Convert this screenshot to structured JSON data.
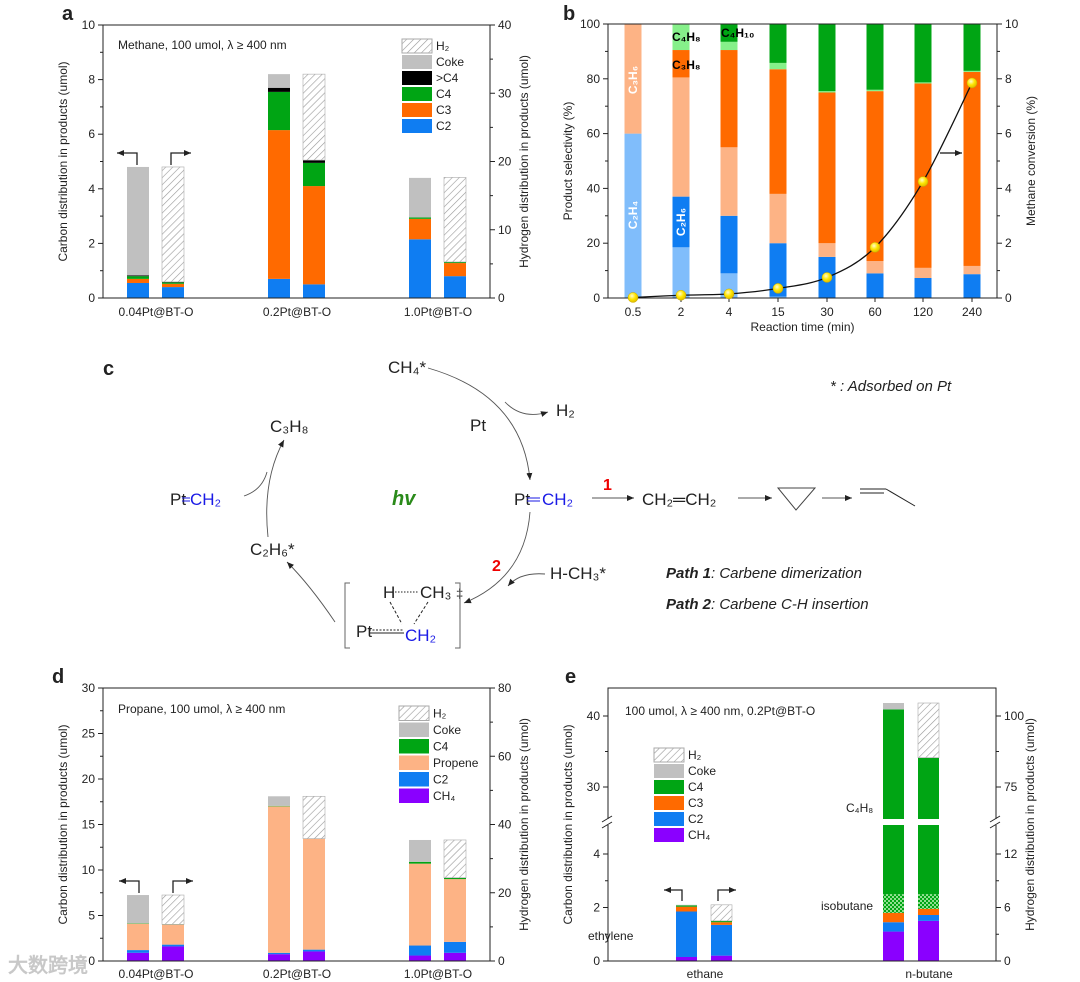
{
  "panel_labels": {
    "a": "a",
    "b": "b",
    "c": "c",
    "d": "d",
    "e": "e"
  },
  "watermark": "大数跨境",
  "colors": {
    "C2": "#0f7df2",
    "C3": "#ff6a00",
    "C4": "#00a514",
    ">C4": "#000000",
    "Coke": "#c0c0c0",
    "Propene": "#fdb385",
    "CH4": "#8a00ff",
    "C2H4": "#80bdfb",
    "C2H6": "#0f7df2",
    "C3H6": "#fdb385",
    "C3H8": "#ff6a00",
    "C4H8": "#86f08a",
    "C4H10": "#00a514",
    "isobutane": "#00a514",
    "H2": "hatch",
    "conversion": "#ffe600"
  },
  "chart_data": [
    {
      "id": "a",
      "type": "bar",
      "stacked": true,
      "title": "Methane, 100 umol, λ ≥ 400 nm",
      "ylabel": "Carbon distribution in products (umol)",
      "y2label": "Hydrogen distribution  in products (umol)",
      "ylim": [
        0,
        10
      ],
      "y2lim": [
        0,
        40
      ],
      "yticks": [
        "0",
        "2",
        "4",
        "6",
        "8",
        "10"
      ],
      "y2ticks": [
        "0",
        "10",
        "20",
        "30",
        "40"
      ],
      "categories": [
        "0.04Pt@BT-O",
        "0.2Pt@BT-O",
        "1.0Pt@BT-O"
      ],
      "legend": [
        "H₂",
        "Coke",
        ">C4",
        "C4",
        "C3",
        "C2"
      ],
      "legend_keys": [
        "H2",
        "Coke",
        ">C4",
        "C4",
        "C3",
        "C2"
      ],
      "value_units": "left-axis (carbon) units; hydrogen bars read against left scale (right axis = 4×)",
      "bars": [
        {
          "category": "0.04Pt@BT-O",
          "kind": "carbon",
          "segments": [
            {
              "name": "C2",
              "value": 0.55
            },
            {
              "name": "C3",
              "value": 0.15
            },
            {
              "name": "C4",
              "value": 0.1
            },
            {
              "name": ">C4",
              "value": 0.03
            },
            {
              "name": "Coke",
              "value": 3.97
            }
          ]
        },
        {
          "category": "0.04Pt@BT-O",
          "kind": "hydrogen",
          "segments": [
            {
              "name": "C2",
              "value": 0.4
            },
            {
              "name": "C3",
              "value": 0.12
            },
            {
              "name": "C4",
              "value": 0.05
            },
            {
              "name": ">C4",
              "value": 0.02
            },
            {
              "name": "H2",
              "value": 4.21
            }
          ]
        },
        {
          "category": "0.2Pt@BT-O",
          "kind": "carbon",
          "segments": [
            {
              "name": "C2",
              "value": 0.7
            },
            {
              "name": "C3",
              "value": 5.45
            },
            {
              "name": "C4",
              "value": 1.4
            },
            {
              "name": ">C4",
              "value": 0.15
            },
            {
              "name": "Coke",
              "value": 0.5
            }
          ]
        },
        {
          "category": "0.2Pt@BT-O",
          "kind": "hydrogen",
          "segments": [
            {
              "name": "C2",
              "value": 0.5
            },
            {
              "name": "C3",
              "value": 3.6
            },
            {
              "name": "C4",
              "value": 0.85
            },
            {
              "name": ">C4",
              "value": 0.1
            },
            {
              "name": "H2",
              "value": 3.15
            }
          ]
        },
        {
          "category": "1.0Pt@BT-O",
          "kind": "carbon",
          "segments": [
            {
              "name": "C2",
              "value": 2.15
            },
            {
              "name": "C3",
              "value": 0.75
            },
            {
              "name": "C4",
              "value": 0.05
            },
            {
              "name": "Coke",
              "value": 1.45
            }
          ]
        },
        {
          "category": "1.0Pt@BT-O",
          "kind": "hydrogen",
          "segments": [
            {
              "name": "C2",
              "value": 0.8
            },
            {
              "name": "C3",
              "value": 0.48
            },
            {
              "name": "C4",
              "value": 0.04
            },
            {
              "name": "H2",
              "value": 3.1
            }
          ]
        }
      ]
    },
    {
      "id": "b",
      "type": "bar",
      "stacked": true,
      "xlabel": "Reaction time (min)",
      "ylabel": "Product selectivity (%)",
      "y2label": "Methane conversion (%)",
      "ylim": [
        0,
        100
      ],
      "y2lim": [
        0,
        10
      ],
      "yticks": [
        "0",
        "20",
        "40",
        "60",
        "80",
        "100"
      ],
      "y2ticks": [
        "0",
        "2",
        "4",
        "6",
        "8",
        "10"
      ],
      "categories": [
        "0.5",
        "2",
        "4",
        "15",
        "30",
        "60",
        "120",
        "240"
      ],
      "series": [
        {
          "name": "C2H4",
          "label": "C₂H₄",
          "values": [
            60,
            18.5,
            9,
            0.5,
            0,
            0,
            0,
            0
          ]
        },
        {
          "name": "C2H6",
          "label": "C₂H₆",
          "values": [
            0,
            18.5,
            21,
            19.5,
            15,
            9,
            7.3,
            8.7
          ]
        },
        {
          "name": "C3H6",
          "label": "C₃H₆",
          "values": [
            40,
            43.5,
            25,
            18,
            5,
            4.5,
            3.7,
            3
          ]
        },
        {
          "name": "C3H8",
          "label": "C₃H₈",
          "values": [
            0,
            10,
            35.5,
            45.5,
            55,
            62,
            67.3,
            70.8
          ]
        },
        {
          "name": "C4H8",
          "label": "C₄H₈",
          "values": [
            0,
            9.5,
            3,
            2.3,
            0.5,
            0.5,
            0.4,
            0.4
          ]
        },
        {
          "name": "C4H10",
          "label": "C₄H₁₀",
          "values": [
            0,
            0,
            6.5,
            14.2,
            24.5,
            24,
            21.3,
            17.1
          ]
        }
      ],
      "line_series": {
        "name": "Methane conversion",
        "axis": "right",
        "values": [
          0.02,
          0.1,
          0.15,
          0.35,
          0.75,
          1.85,
          4.25,
          7.85
        ]
      }
    },
    {
      "id": "d",
      "type": "bar",
      "stacked": true,
      "title": "Propane, 100 umol,  λ ≥ 400 nm",
      "ylabel": "Carbon distribution in products (umol)",
      "y2label": "Hydrogen distribution in products (umol)",
      "ylim": [
        0,
        30
      ],
      "y2lim": [
        0,
        80
      ],
      "yticks": [
        "0",
        "5",
        "10",
        "15",
        "20",
        "25",
        "30"
      ],
      "y2ticks": [
        "0",
        "20",
        "40",
        "60",
        "80"
      ],
      "categories": [
        "0.04Pt@BT-O",
        "0.2Pt@BT-O",
        "1.0Pt@BT-O"
      ],
      "legend": [
        "H₂",
        "Coke",
        "C4",
        "Propene",
        "C2",
        "CH₄"
      ],
      "legend_keys": [
        "H2",
        "Coke",
        "C4",
        "Propene",
        "C2",
        "CH4"
      ],
      "value_units": "left-axis (carbon) units; right axis = 8/3×",
      "bars": [
        {
          "category": "0.04Pt@BT-O",
          "kind": "carbon",
          "segments": [
            {
              "name": "CH4",
              "value": 0.9
            },
            {
              "name": "C2",
              "value": 0.3
            },
            {
              "name": "Propene",
              "value": 2.9
            },
            {
              "name": "C4",
              "value": 0.05
            },
            {
              "name": "Coke",
              "value": 3.1
            }
          ]
        },
        {
          "category": "0.04Pt@BT-O",
          "kind": "hydrogen",
          "segments": [
            {
              "name": "CH4",
              "value": 1.6
            },
            {
              "name": "C2",
              "value": 0.2
            },
            {
              "name": "Propene",
              "value": 2.2
            },
            {
              "name": "C4",
              "value": 0.03
            },
            {
              "name": "H2",
              "value": 3.22
            }
          ]
        },
        {
          "category": "0.2Pt@BT-O",
          "kind": "carbon",
          "segments": [
            {
              "name": "CH4",
              "value": 0.75
            },
            {
              "name": "C2",
              "value": 0.15
            },
            {
              "name": "Propene",
              "value": 16.1
            },
            {
              "name": "C4",
              "value": 0.05
            },
            {
              "name": "Coke",
              "value": 1.05
            }
          ]
        },
        {
          "category": "0.2Pt@BT-O",
          "kind": "hydrogen",
          "segments": [
            {
              "name": "CH4",
              "value": 1.05
            },
            {
              "name": "C2",
              "value": 0.2
            },
            {
              "name": "Propene",
              "value": 12.2
            },
            {
              "name": "H2",
              "value": 4.65
            }
          ]
        },
        {
          "category": "1.0Pt@BT-O",
          "kind": "carbon",
          "segments": [
            {
              "name": "CH4",
              "value": 0.6
            },
            {
              "name": "C2",
              "value": 1.1
            },
            {
              "name": "Propene",
              "value": 9.0
            },
            {
              "name": "C4",
              "value": 0.2
            },
            {
              "name": "Coke",
              "value": 2.4
            }
          ]
        },
        {
          "category": "1.0Pt@BT-O",
          "kind": "hydrogen",
          "segments": [
            {
              "name": "CH4",
              "value": 0.9
            },
            {
              "name": "C2",
              "value": 1.2
            },
            {
              "name": "Propene",
              "value": 6.9
            },
            {
              "name": "C4",
              "value": 0.15
            },
            {
              "name": "H2",
              "value": 4.15
            }
          ]
        }
      ]
    },
    {
      "id": "e",
      "type": "bar",
      "stacked": true,
      "title": "100 umol, λ ≥ 400 nm, 0.2Pt@BT-O",
      "ylabel": "Carbon distribution in products (umol)",
      "y2label": "Hydrogen distribution in products (umol)",
      "y_break": [
        5,
        25
      ],
      "yticks_lower": [
        "0",
        "2",
        "4"
      ],
      "yticks_upper": [
        "30",
        "40"
      ],
      "y2ticks_lower": [
        "0",
        "6",
        "12"
      ],
      "y2ticks_upper": [
        "75",
        "100"
      ],
      "categories": [
        "ethane",
        "n-butane"
      ],
      "legend": [
        "H₂",
        "Coke",
        "C4",
        "C3",
        "C2",
        "CH₄"
      ],
      "legend_keys": [
        "H2",
        "Coke",
        "C4",
        "C3",
        "C2",
        "CH4"
      ],
      "annotations": [
        "ethylene",
        "isobutane",
        "C₄H₈"
      ],
      "value_units": "left-axis (carbon) units",
      "bars": [
        {
          "category": "ethane",
          "kind": "carbon",
          "segments": [
            {
              "name": "CH4",
              "value": 0.15
            },
            {
              "name": "C2",
              "value": 1.7
            },
            {
              "name": "C3",
              "value": 0.18
            },
            {
              "name": "C4",
              "value": 0.05
            },
            {
              "name": "Coke",
              "value": 0.02
            }
          ]
        },
        {
          "category": "ethane",
          "kind": "hydrogen",
          "segments": [
            {
              "name": "CH4",
              "value": 0.2
            },
            {
              "name": "C2",
              "value": 1.15
            },
            {
              "name": "C3",
              "value": 0.1
            },
            {
              "name": "C4",
              "value": 0.05
            },
            {
              "name": "H2",
              "value": 0.6
            }
          ]
        },
        {
          "category": "n-butane",
          "kind": "carbon",
          "segments": [
            {
              "name": "CH4",
              "value": 1.1
            },
            {
              "name": "C2",
              "value": 0.35
            },
            {
              "name": "C3",
              "value": 0.35
            },
            {
              "name": "isobutane",
              "value": 0.7
            },
            {
              "name": "C4",
              "value": 38.5
            },
            {
              "name": "Coke",
              "value": 0.9
            }
          ]
        },
        {
          "category": "n-butane",
          "kind": "hydrogen",
          "segments": [
            {
              "name": "CH4",
              "value": 1.5
            },
            {
              "name": "C2",
              "value": 0.22
            },
            {
              "name": "C3",
              "value": 0.23
            },
            {
              "name": "isobutane",
              "value": 0.55
            },
            {
              "name": "C4",
              "value": 31.7
            },
            {
              "name": "H2",
              "value": 7.7
            }
          ]
        }
      ]
    }
  ],
  "scheme": {
    "ch4_ads": "CH₄*",
    "h2": "H₂",
    "pt_label": "Pt",
    "c3h8": "C₃H₈",
    "pt_left": "Pt",
    "ch2_left": "CH₂",
    "hv": "hv",
    "pt_right": "Pt",
    "ch2_right": "CH₂",
    "path1_num": "1",
    "path2_num": "2",
    "ethylene": "CH₂═CH₂",
    "c2h6_ads": "C₂H₆*",
    "h_ch3": "H-CH₃*",
    "ts_h": "H",
    "ts_ch3": "CH₃",
    "ts_dagger": "‡",
    "ts_pt": "Pt",
    "ts_ch2": "CH₂",
    "footnote_star": "*  :  Adsorbed on Pt",
    "path1_bold": "Path 1",
    "path1_text": ": Carbene dimerization",
    "path2_bold": "Path 2",
    "path2_text": ": Carbene C-H insertion"
  }
}
